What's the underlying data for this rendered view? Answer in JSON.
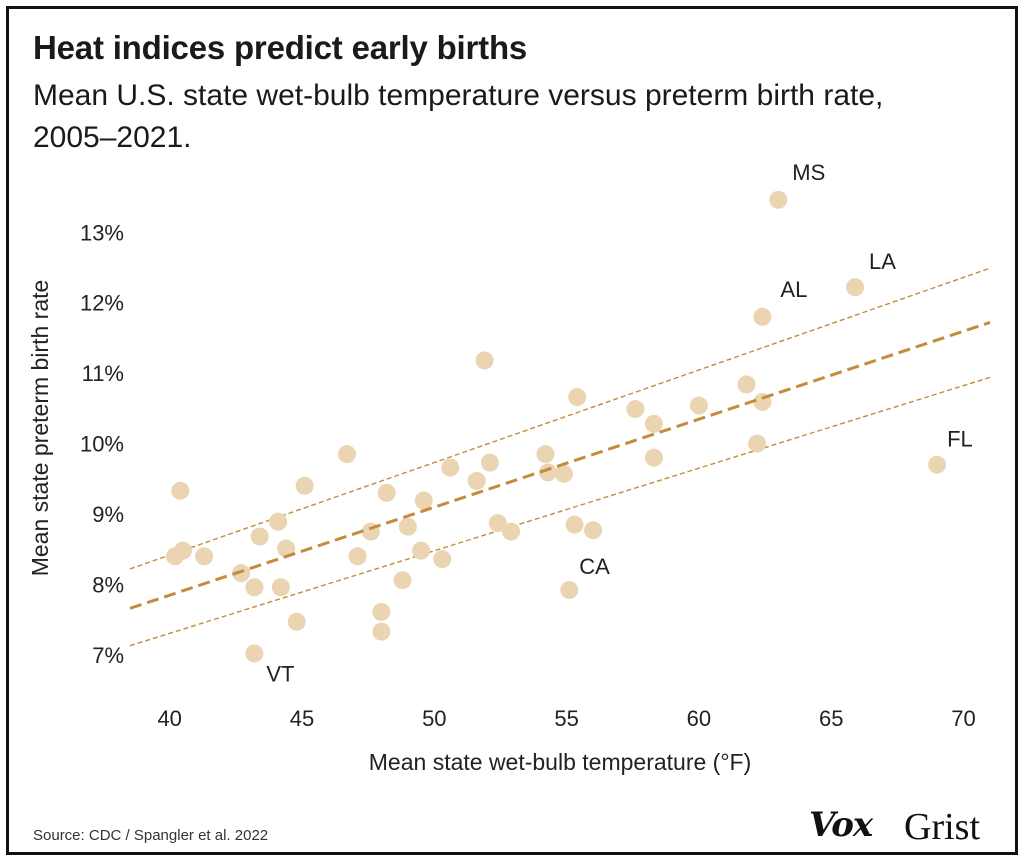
{
  "title": "Heat indices predict early births",
  "subtitle": "Mean U.S. state wet-bulb temperature versus preterm birth rate, 2005–2021.",
  "source": "Source: CDC / Spangler et al. 2022",
  "logos": {
    "vox": "Vox",
    "grist": "Grist"
  },
  "colors": {
    "point": "#ebd4b1",
    "trend": "#c48b3c",
    "text": "#222222"
  },
  "chart_data": {
    "type": "scatter",
    "title": "Heat indices predict early births",
    "xlabel": "Mean state wet-bulb temperature (°F)",
    "ylabel": "Mean state preterm birth rate",
    "xlim": [
      38.5,
      71
    ],
    "ylim": [
      6.7,
      13.6
    ],
    "xticks": [
      40,
      45,
      50,
      55,
      60,
      65,
      70
    ],
    "xtick_labels": [
      "40",
      "45",
      "50",
      "55",
      "60",
      "65",
      "70"
    ],
    "yticks": [
      7,
      8,
      9,
      10,
      11,
      12,
      13
    ],
    "ytick_labels": [
      "7%",
      "8%",
      "9%",
      "10%",
      "11%",
      "12%",
      "13%"
    ],
    "points": [
      {
        "x": 40.2,
        "y": 8.4
      },
      {
        "x": 40.4,
        "y": 9.33
      },
      {
        "x": 40.5,
        "y": 8.48
      },
      {
        "x": 41.3,
        "y": 8.4
      },
      {
        "x": 42.7,
        "y": 8.16
      },
      {
        "x": 43.2,
        "y": 7.96
      },
      {
        "x": 43.2,
        "y": 7.02,
        "label": "VT"
      },
      {
        "x": 43.4,
        "y": 8.68
      },
      {
        "x": 44.1,
        "y": 8.89
      },
      {
        "x": 44.2,
        "y": 7.96
      },
      {
        "x": 44.4,
        "y": 8.51
      },
      {
        "x": 44.8,
        "y": 7.47
      },
      {
        "x": 45.1,
        "y": 9.4
      },
      {
        "x": 46.7,
        "y": 9.85
      },
      {
        "x": 47.1,
        "y": 8.4
      },
      {
        "x": 47.6,
        "y": 8.75
      },
      {
        "x": 48.0,
        "y": 7.61
      },
      {
        "x": 48.0,
        "y": 7.33
      },
      {
        "x": 48.2,
        "y": 9.3
      },
      {
        "x": 48.8,
        "y": 8.06
      },
      {
        "x": 49.0,
        "y": 8.82
      },
      {
        "x": 49.5,
        "y": 8.48
      },
      {
        "x": 49.6,
        "y": 9.19
      },
      {
        "x": 50.3,
        "y": 8.36
      },
      {
        "x": 50.6,
        "y": 9.66
      },
      {
        "x": 51.6,
        "y": 9.47
      },
      {
        "x": 51.9,
        "y": 11.18
      },
      {
        "x": 52.1,
        "y": 9.73
      },
      {
        "x": 52.4,
        "y": 8.87
      },
      {
        "x": 52.9,
        "y": 8.75
      },
      {
        "x": 54.2,
        "y": 9.85
      },
      {
        "x": 54.3,
        "y": 9.59
      },
      {
        "x": 54.9,
        "y": 9.57
      },
      {
        "x": 55.1,
        "y": 7.92,
        "label": "CA"
      },
      {
        "x": 55.3,
        "y": 8.85
      },
      {
        "x": 55.4,
        "y": 10.66
      },
      {
        "x": 56.0,
        "y": 8.77
      },
      {
        "x": 57.6,
        "y": 10.49
      },
      {
        "x": 58.3,
        "y": 10.28
      },
      {
        "x": 58.3,
        "y": 9.8
      },
      {
        "x": 60.0,
        "y": 10.54
      },
      {
        "x": 61.8,
        "y": 10.84
      },
      {
        "x": 62.2,
        "y": 10.0
      },
      {
        "x": 62.4,
        "y": 10.59
      },
      {
        "x": 62.4,
        "y": 11.8,
        "label": "AL"
      },
      {
        "x": 63.0,
        "y": 13.46,
        "label": "MS"
      },
      {
        "x": 65.9,
        "y": 12.22,
        "label": "LA"
      },
      {
        "x": 69.0,
        "y": 9.7,
        "label": "FL"
      }
    ],
    "trend_line": {
      "x": [
        38.5,
        71
      ],
      "y": [
        7.66,
        11.72
      ],
      "style": "dashed"
    },
    "confidence_upper": {
      "x": [
        38.5,
        71
      ],
      "y": [
        8.22,
        12.49
      ],
      "style": "dashed-thin"
    },
    "confidence_lower": {
      "x": [
        38.5,
        71
      ],
      "y": [
        7.13,
        10.94
      ],
      "style": "dashed-thin"
    },
    "grid": false,
    "legend": "none"
  }
}
